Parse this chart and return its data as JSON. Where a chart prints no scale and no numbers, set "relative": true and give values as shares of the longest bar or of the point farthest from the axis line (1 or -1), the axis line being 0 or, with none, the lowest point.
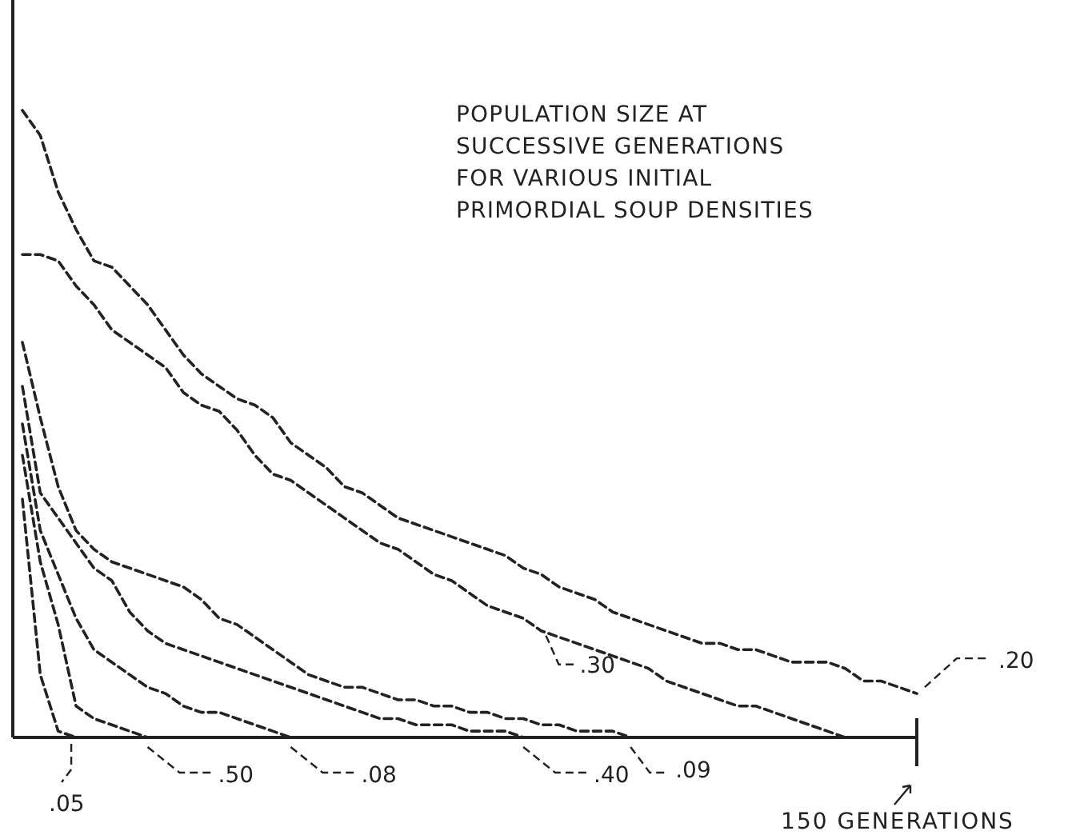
{
  "chart_data": {
    "type": "line",
    "relative": true,
    "title": "POPULATION SIZE AT\nSUCCESSIVE GENERATIONS\nFOR VARIOUS INITIAL\nPRIMORDIAL SOUP DENSITIES",
    "annotations": [
      "150 GENERATIONS"
    ],
    "legend": "bottom",
    "line_style": "dashed",
    "categories": [
      null,
      null,
      null,
      null,
      null,
      null,
      null,
      null,
      null,
      null,
      null,
      null,
      null,
      null,
      null,
      null,
      null,
      null,
      null,
      null,
      null,
      null,
      null,
      null,
      null,
      null,
      null,
      null,
      null,
      null,
      null,
      null,
      null,
      null,
      null,
      null,
      null,
      null,
      null,
      null,
      null,
      null,
      null,
      null,
      null,
      null,
      null,
      null,
      null,
      null,
      null
    ],
    "series": [
      {
        "name": ".05",
        "color": "#222222",
        "values": [
          0.38,
          0.1,
          0.01,
          0,
          null,
          null,
          null,
          null,
          null,
          null,
          null,
          null,
          null,
          null,
          null,
          null,
          null,
          null,
          null,
          null,
          null,
          null,
          null,
          null,
          null,
          null,
          null,
          null,
          null,
          null,
          null,
          null,
          null,
          null,
          null,
          null,
          null,
          null,
          null,
          null,
          null,
          null,
          null,
          null,
          null,
          null,
          null,
          null,
          null,
          null,
          null
        ]
      },
      {
        "name": ".50",
        "color": "#222222",
        "values": [
          0.45,
          0.28,
          0.18,
          0.05,
          0.03,
          0.02,
          0.01,
          0,
          null,
          null,
          null,
          null,
          null,
          null,
          null,
          null,
          null,
          null,
          null,
          null,
          null,
          null,
          null,
          null,
          null,
          null,
          null,
          null,
          null,
          null,
          null,
          null,
          null,
          null,
          null,
          null,
          null,
          null,
          null,
          null,
          null,
          null,
          null,
          null,
          null,
          null,
          null,
          null,
          null,
          null,
          null
        ]
      },
      {
        "name": ".08",
        "color": "#222222",
        "values": [
          0.5,
          0.33,
          0.26,
          0.19,
          0.14,
          0.12,
          0.1,
          0.08,
          0.07,
          0.05,
          0.04,
          0.04,
          0.03,
          0.02,
          0.01,
          0,
          null,
          null,
          null,
          null,
          null,
          null,
          null,
          null,
          null,
          null,
          null,
          null,
          null,
          null,
          null,
          null,
          null,
          null,
          null,
          null,
          null,
          null,
          null,
          null,
          null,
          null,
          null,
          null,
          null,
          null,
          null,
          null,
          null,
          null,
          null
        ]
      },
      {
        "name": ".40",
        "color": "#222222",
        "values": [
          0.56,
          0.39,
          0.35,
          0.31,
          0.27,
          0.25,
          0.2,
          0.17,
          0.15,
          0.14,
          0.13,
          0.12,
          0.11,
          0.1,
          0.09,
          0.08,
          0.07,
          0.06,
          0.05,
          0.04,
          0.03,
          0.03,
          0.02,
          0.02,
          0.02,
          0.01,
          0.01,
          0.01,
          0,
          null,
          null,
          null,
          null,
          null,
          null,
          null,
          null,
          null,
          null,
          null,
          null,
          null,
          null,
          null,
          null,
          null,
          null,
          null,
          null,
          null,
          null
        ]
      },
      {
        "name": ".09",
        "color": "#222222",
        "values": [
          0.63,
          0.51,
          0.4,
          0.33,
          0.3,
          0.28,
          0.27,
          0.26,
          0.25,
          0.24,
          0.22,
          0.19,
          0.18,
          0.16,
          0.14,
          0.12,
          0.1,
          0.09,
          0.08,
          0.08,
          0.07,
          0.06,
          0.06,
          0.05,
          0.05,
          0.04,
          0.04,
          0.03,
          0.03,
          0.02,
          0.02,
          0.01,
          0.01,
          0.01,
          0,
          null,
          null,
          null,
          null,
          null,
          null,
          null,
          null,
          null,
          null,
          null,
          null,
          null,
          null,
          null,
          null
        ]
      },
      {
        "name": ".30",
        "color": "#222222",
        "values": [
          0.77,
          0.77,
          0.76,
          0.72,
          0.69,
          0.65,
          0.63,
          0.61,
          0.59,
          0.55,
          0.53,
          0.52,
          0.49,
          0.45,
          0.42,
          0.41,
          0.39,
          0.37,
          0.35,
          0.33,
          0.31,
          0.3,
          0.28,
          0.26,
          0.25,
          0.23,
          0.21,
          0.2,
          0.19,
          0.17,
          0.16,
          0.15,
          0.14,
          0.13,
          0.12,
          0.11,
          0.09,
          0.08,
          0.07,
          0.06,
          0.05,
          0.05,
          0.04,
          0.03,
          0.02,
          0.01,
          0,
          null,
          null,
          null,
          null
        ]
      },
      {
        "name": ".20",
        "color": "#222222",
        "values": [
          1,
          0.96,
          0.87,
          0.81,
          0.76,
          0.75,
          0.72,
          0.69,
          0.65,
          0.61,
          0.58,
          0.56,
          0.54,
          0.53,
          0.51,
          0.47,
          0.45,
          0.43,
          0.4,
          0.39,
          0.37,
          0.35,
          0.34,
          0.33,
          0.32,
          0.31,
          0.3,
          0.29,
          0.27,
          0.26,
          0.24,
          0.23,
          0.22,
          0.2,
          0.19,
          0.18,
          0.17,
          0.16,
          0.15,
          0.15,
          0.14,
          0.14,
          0.13,
          0.12,
          0.12,
          0.12,
          0.11,
          0.09,
          0.09,
          0.08,
          0.07
        ]
      }
    ]
  }
}
